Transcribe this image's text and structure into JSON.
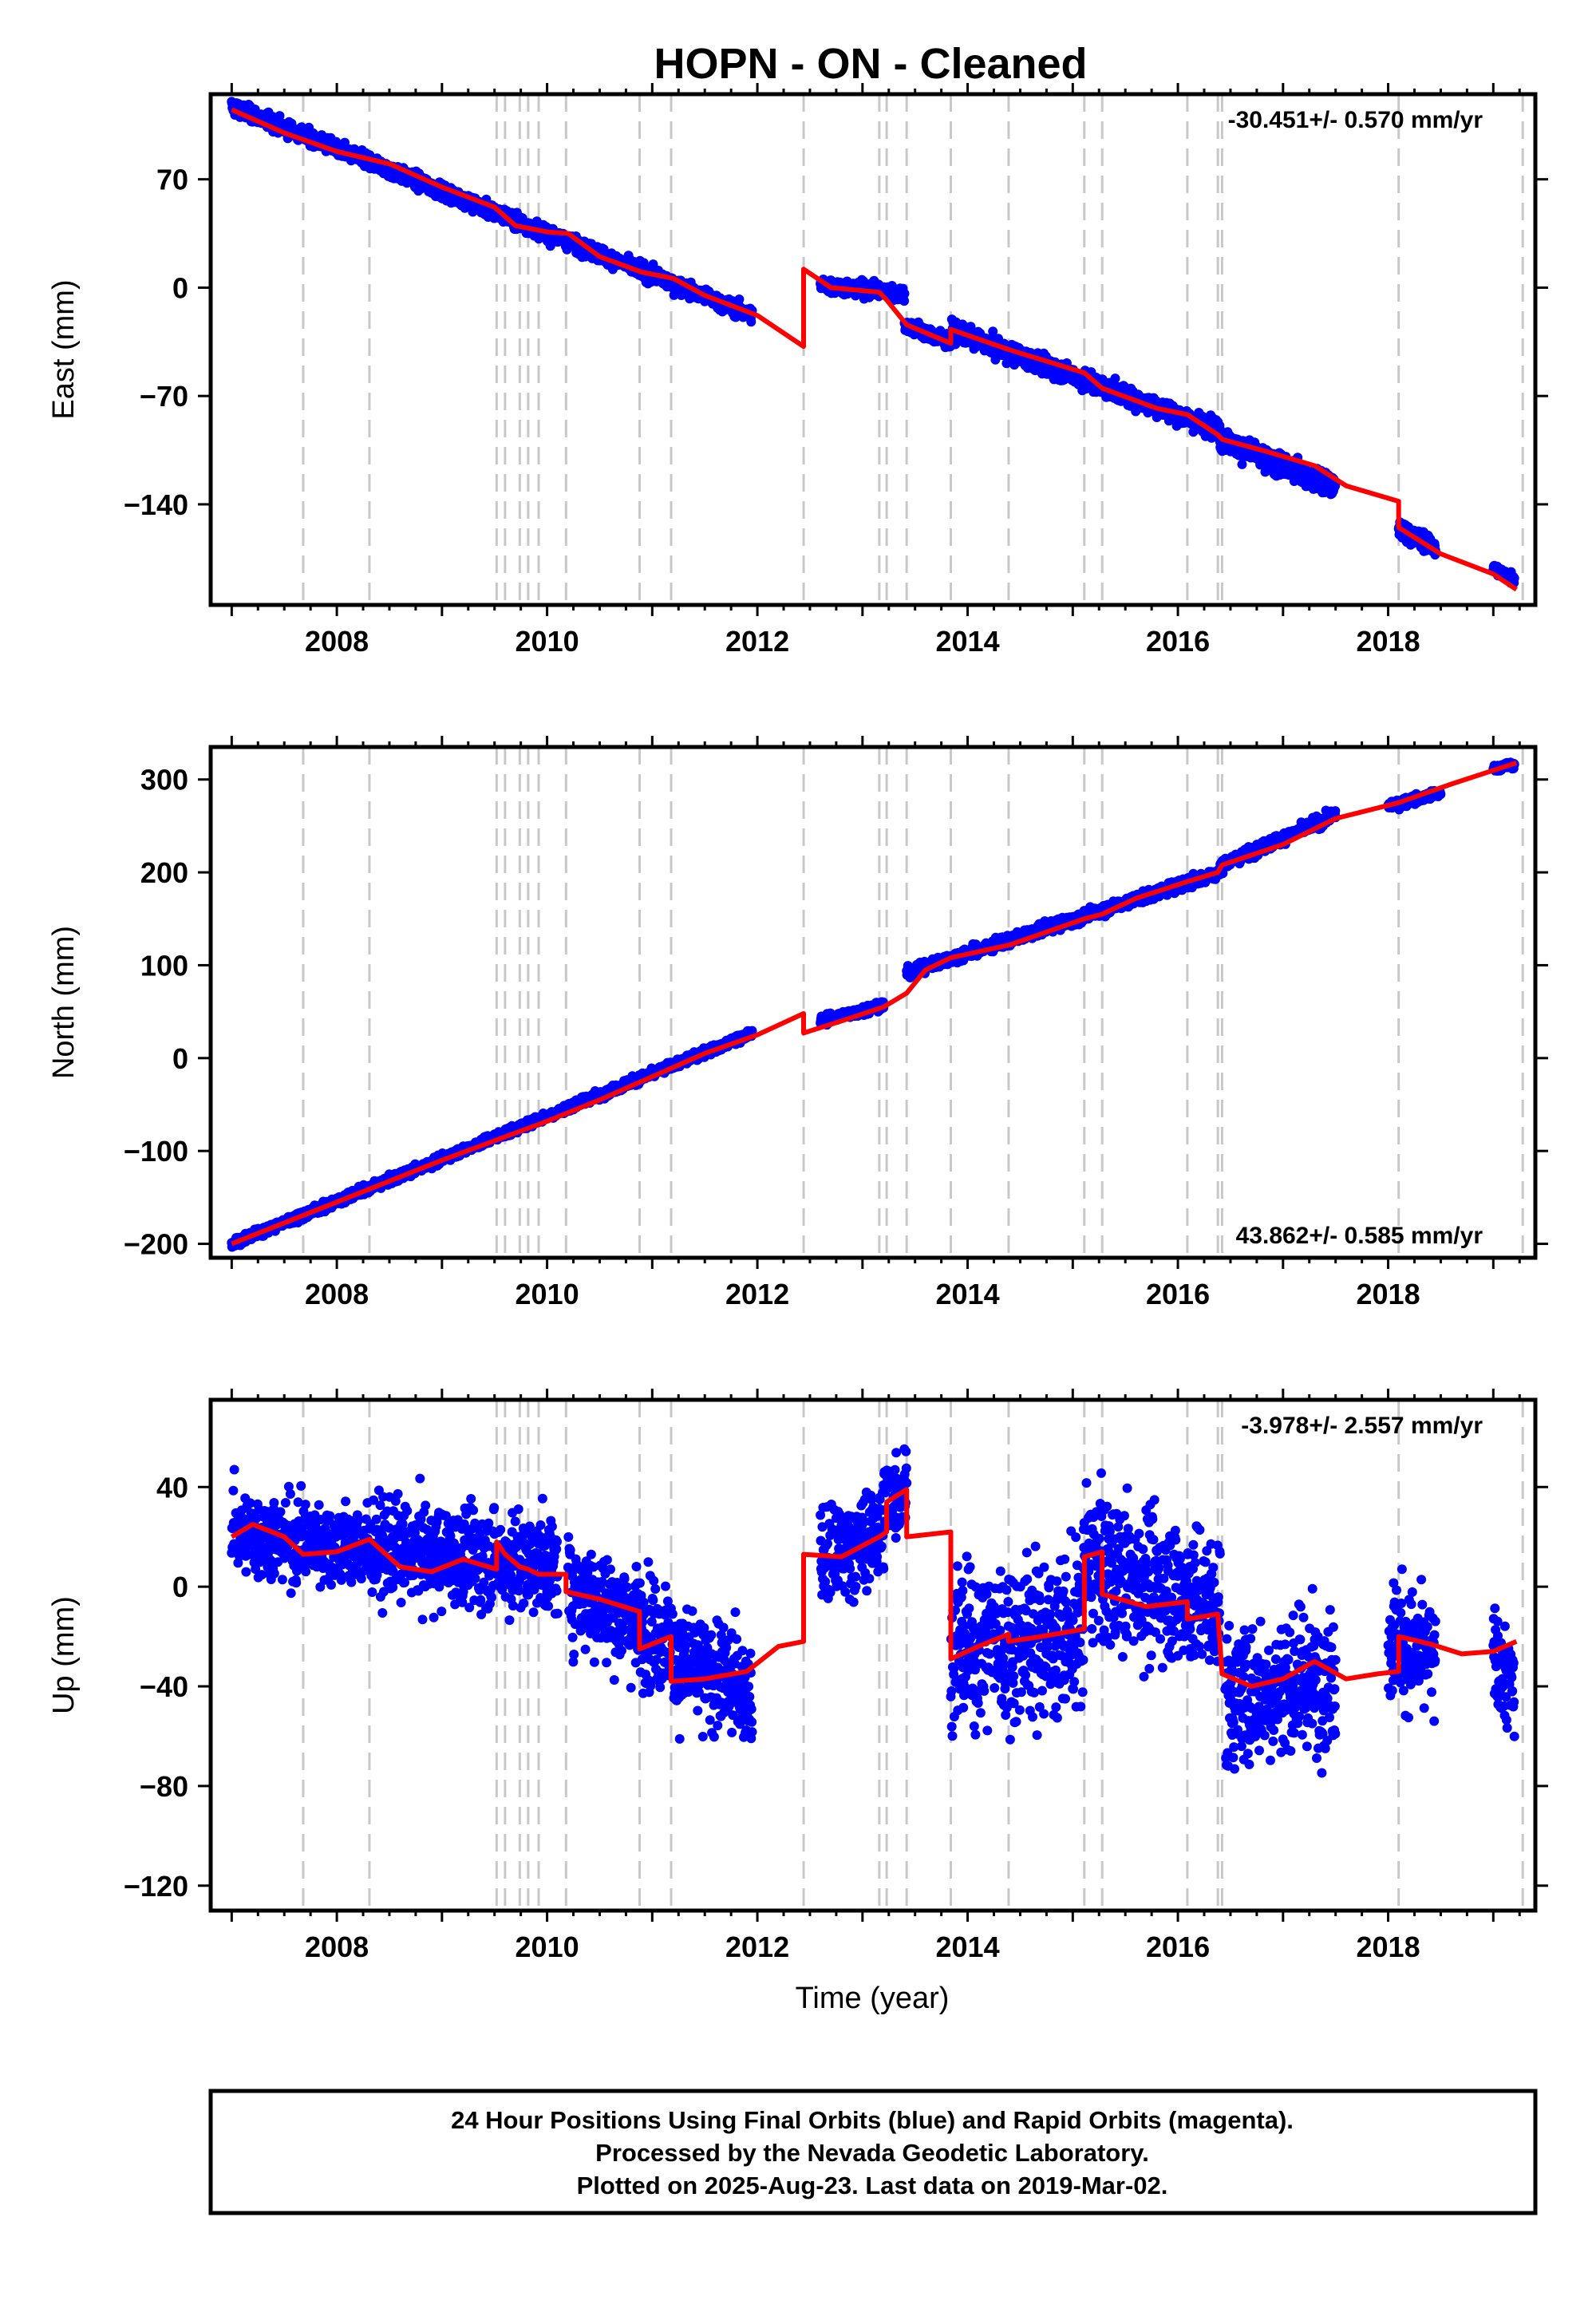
{
  "title": "HOPN  - ON - Cleaned",
  "xlabel": "Time (year)",
  "colors": {
    "final_orbits": "#0000ff",
    "model": "#ff0000",
    "offsets": "#c8c8c8"
  },
  "footer": {
    "line1": "24 Hour Positions Using Final Orbits (blue) and Rapid Orbits (magenta).",
    "line2": "Processed by the Nevada Geodetic Laboratory.",
    "line3": "Plotted on 2025-Aug-23. Last data on 2019-Mar-02."
  },
  "chart_data": [
    {
      "type": "scatter",
      "ylabel": "East (mm)",
      "rate": "-30.451+/- 0.570 mm/yr",
      "rate_position": "top-right",
      "xlim": [
        2006.8,
        2019.4
      ],
      "ylim": [
        -205,
        125
      ],
      "xticks": [
        "2008",
        "2010",
        "2012",
        "2014",
        "2016",
        "2018"
      ],
      "yticks": [
        "70",
        "0",
        "−70",
        "−140"
      ],
      "ytick_values": [
        70,
        0,
        -70,
        -140
      ],
      "offset_epochs": [
        2007.68,
        2008.31,
        2009.52,
        2009.6,
        2009.74,
        2009.82,
        2009.92,
        2010.18,
        2010.88,
        2011.18,
        2012.44,
        2013.16,
        2013.23,
        2013.42,
        2013.84,
        2014.39,
        2015.11,
        2015.28,
        2016.09,
        2016.38,
        2016.42,
        2018.1,
        2019.28
      ],
      "model": [
        [
          2007.0,
          115
        ],
        [
          2007.5,
          100
        ],
        [
          2008.0,
          88
        ],
        [
          2008.5,
          80
        ],
        [
          2009.0,
          65
        ],
        [
          2009.5,
          52
        ],
        [
          2009.7,
          40
        ],
        [
          2010.0,
          36
        ],
        [
          2010.2,
          35
        ],
        [
          2010.5,
          20
        ],
        [
          2010.9,
          10
        ],
        [
          2011.2,
          6
        ],
        [
          2011.5,
          -5
        ],
        [
          2012.0,
          -18
        ],
        [
          2012.44,
          -38
        ],
        [
          2012.44,
          12
        ],
        [
          2012.7,
          0
        ],
        [
          2013.16,
          -3
        ],
        [
          2013.23,
          -8
        ],
        [
          2013.42,
          -24
        ],
        [
          2013.84,
          -36
        ],
        [
          2013.84,
          -27
        ],
        [
          2014.39,
          -40
        ],
        [
          2015.11,
          -55
        ],
        [
          2015.28,
          -65
        ],
        [
          2015.8,
          -78
        ],
        [
          2016.09,
          -82
        ],
        [
          2016.38,
          -95
        ],
        [
          2016.42,
          -98
        ],
        [
          2016.8,
          -105
        ],
        [
          2017.3,
          -115
        ],
        [
          2017.6,
          -128
        ],
        [
          2018.1,
          -138
        ],
        [
          2018.1,
          -155
        ],
        [
          2018.5,
          -172
        ],
        [
          2019.0,
          -185
        ],
        [
          2019.22,
          -195
        ]
      ],
      "data_segments": [
        {
          "x": [
            2007.0,
            2011.95
          ],
          "y": [
            117,
            -18
          ],
          "scatter": 4
        },
        {
          "x": [
            2012.6,
            2013.4
          ],
          "y": [
            2,
            -4
          ],
          "scatter": 4
        },
        {
          "x": [
            2013.4,
            2013.85
          ],
          "y": [
            -24,
            -36
          ],
          "scatter": 4
        },
        {
          "x": [
            2013.85,
            2016.4
          ],
          "y": [
            -28,
            -92
          ],
          "scatter": 5
        },
        {
          "x": [
            2016.4,
            2017.5
          ],
          "y": [
            -98,
            -130
          ],
          "scatter": 6
        },
        {
          "x": [
            2018.1,
            2018.45
          ],
          "y": [
            -155,
            -168
          ],
          "scatter": 5
        },
        {
          "x": [
            2019.0,
            2019.2
          ],
          "y": [
            -182,
            -188
          ],
          "scatter": 3
        }
      ]
    },
    {
      "type": "scatter",
      "ylabel": "North (mm)",
      "rate": "43.862+/- 0.585 mm/yr",
      "rate_position": "bottom-right",
      "xlim": [
        2006.8,
        2019.4
      ],
      "ylim": [
        -215,
        335
      ],
      "xticks": [
        "2008",
        "2010",
        "2012",
        "2014",
        "2016",
        "2018"
      ],
      "yticks": [
        "300",
        "200",
        "100",
        "0",
        "−100",
        "−200"
      ],
      "ytick_values": [
        300,
        200,
        100,
        0,
        -100,
        -200
      ],
      "offset_epochs": [
        2007.68,
        2008.31,
        2009.52,
        2009.6,
        2009.74,
        2009.82,
        2009.92,
        2010.18,
        2010.88,
        2011.18,
        2012.44,
        2013.16,
        2013.23,
        2013.42,
        2013.84,
        2014.39,
        2015.11,
        2015.28,
        2016.09,
        2016.38,
        2016.42,
        2018.1,
        2019.28
      ],
      "model": [
        [
          2007.0,
          -200
        ],
        [
          2008.0,
          -155
        ],
        [
          2009.0,
          -110
        ],
        [
          2010.0,
          -68
        ],
        [
          2010.5,
          -45
        ],
        [
          2011.0,
          -20
        ],
        [
          2011.5,
          5
        ],
        [
          2012.0,
          25
        ],
        [
          2012.44,
          48
        ],
        [
          2012.44,
          27
        ],
        [
          2012.8,
          40
        ],
        [
          2013.2,
          55
        ],
        [
          2013.42,
          70
        ],
        [
          2013.6,
          95
        ],
        [
          2013.84,
          108
        ],
        [
          2014.4,
          122
        ],
        [
          2015.11,
          150
        ],
        [
          2015.28,
          155
        ],
        [
          2015.6,
          172
        ],
        [
          2016.09,
          190
        ],
        [
          2016.38,
          200
        ],
        [
          2016.42,
          208
        ],
        [
          2017.0,
          230
        ],
        [
          2017.5,
          258
        ],
        [
          2018.1,
          275
        ],
        [
          2018.6,
          295
        ],
        [
          2019.22,
          318
        ]
      ],
      "data_segments": [
        {
          "x": [
            2007.0,
            2011.95
          ],
          "y": [
            -200,
            27
          ],
          "scatter": 4
        },
        {
          "x": [
            2012.6,
            2013.2
          ],
          "y": [
            40,
            57
          ],
          "scatter": 4
        },
        {
          "x": [
            2013.42,
            2016.4
          ],
          "y": [
            92,
            200
          ],
          "scatter": 5
        },
        {
          "x": [
            2016.4,
            2017.5
          ],
          "y": [
            207,
            262
          ],
          "scatter": 5
        },
        {
          "x": [
            2018.0,
            2018.5
          ],
          "y": [
            272,
            285
          ],
          "scatter": 4
        },
        {
          "x": [
            2019.0,
            2019.2
          ],
          "y": [
            312,
            316
          ],
          "scatter": 3
        }
      ]
    },
    {
      "type": "scatter",
      "ylabel": "Up (mm)",
      "rate": "-3.978+/- 2.557 mm/yr",
      "rate_position": "top-right",
      "xlim": [
        2006.8,
        2019.4
      ],
      "ylim": [
        -130,
        75
      ],
      "xticks": [
        "2008",
        "2010",
        "2012",
        "2014",
        "2016",
        "2018"
      ],
      "yticks": [
        "40",
        "0",
        "−40",
        "−80",
        "−120"
      ],
      "ytick_values": [
        40,
        0,
        -40,
        -80,
        -120
      ],
      "offset_epochs": [
        2007.68,
        2008.31,
        2009.52,
        2009.6,
        2009.74,
        2009.82,
        2009.92,
        2010.18,
        2010.88,
        2011.18,
        2012.44,
        2013.16,
        2013.23,
        2013.42,
        2013.84,
        2014.39,
        2015.11,
        2015.28,
        2016.09,
        2016.38,
        2016.42,
        2018.1,
        2019.28
      ],
      "model": [
        [
          2007.0,
          20
        ],
        [
          2007.2,
          25
        ],
        [
          2007.5,
          20
        ],
        [
          2007.68,
          13
        ],
        [
          2008.0,
          14
        ],
        [
          2008.31,
          19
        ],
        [
          2008.6,
          8
        ],
        [
          2008.9,
          6
        ],
        [
          2009.2,
          11
        ],
        [
          2009.52,
          7
        ],
        [
          2009.52,
          18
        ],
        [
          2009.6,
          13
        ],
        [
          2009.74,
          8
        ],
        [
          2009.82,
          7
        ],
        [
          2009.92,
          5
        ],
        [
          2010.18,
          5
        ],
        [
          2010.18,
          -2
        ],
        [
          2010.5,
          -5
        ],
        [
          2010.88,
          -10
        ],
        [
          2010.88,
          -25
        ],
        [
          2011.18,
          -20
        ],
        [
          2011.18,
          -38
        ],
        [
          2011.5,
          -37
        ],
        [
          2011.9,
          -34
        ],
        [
          2012.2,
          -24
        ],
        [
          2012.44,
          -22
        ],
        [
          2012.44,
          13
        ],
        [
          2012.8,
          12
        ],
        [
          2013.16,
          20
        ],
        [
          2013.23,
          22
        ],
        [
          2013.23,
          34
        ],
        [
          2013.42,
          39
        ],
        [
          2013.42,
          20
        ],
        [
          2013.84,
          22
        ],
        [
          2013.84,
          -29
        ],
        [
          2014.1,
          -24
        ],
        [
          2014.39,
          -19
        ],
        [
          2014.39,
          -22
        ],
        [
          2014.7,
          -20
        ],
        [
          2015.11,
          -17
        ],
        [
          2015.11,
          12
        ],
        [
          2015.28,
          14
        ],
        [
          2015.28,
          -3
        ],
        [
          2015.7,
          -8
        ],
        [
          2016.09,
          -6
        ],
        [
          2016.09,
          -13
        ],
        [
          2016.38,
          -11
        ],
        [
          2016.42,
          -35
        ],
        [
          2016.7,
          -40
        ],
        [
          2017.0,
          -37
        ],
        [
          2017.3,
          -30
        ],
        [
          2017.6,
          -37
        ],
        [
          2017.9,
          -35
        ],
        [
          2018.1,
          -34
        ],
        [
          2018.1,
          -20
        ],
        [
          2018.4,
          -23
        ],
        [
          2018.7,
          -27
        ],
        [
          2019.0,
          -26
        ],
        [
          2019.22,
          -22
        ]
      ],
      "data_segments": [
        {
          "x": [
            2007.0,
            2008.3
          ],
          "y": [
            22,
            15
          ],
          "scatter": 14
        },
        {
          "x": [
            2008.3,
            2010.1
          ],
          "y": [
            15,
            8
          ],
          "scatter": 16
        },
        {
          "x": [
            2010.2,
            2011.2
          ],
          "y": [
            0,
            -22
          ],
          "scatter": 18
        },
        {
          "x": [
            2011.2,
            2011.95
          ],
          "y": [
            -30,
            -42
          ],
          "scatter": 18
        },
        {
          "x": [
            2012.6,
            2013.2
          ],
          "y": [
            10,
            22
          ],
          "scatter": 16
        },
        {
          "x": [
            2013.2,
            2013.42
          ],
          "y": [
            35,
            40
          ],
          "scatter": 14
        },
        {
          "x": [
            2013.84,
            2015.1
          ],
          "y": [
            -25,
            -18
          ],
          "scatter": 26
        },
        {
          "x": [
            2015.1,
            2016.4
          ],
          "y": [
            10,
            -8
          ],
          "scatter": 24
        },
        {
          "x": [
            2016.45,
            2017.5
          ],
          "y": [
            -45,
            -35
          ],
          "scatter": 24
        },
        {
          "x": [
            2018.0,
            2018.45
          ],
          "y": [
            -20,
            -30
          ],
          "scatter": 20
        },
        {
          "x": [
            2019.0,
            2019.2
          ],
          "y": [
            -30,
            -40
          ],
          "scatter": 18
        }
      ]
    }
  ]
}
